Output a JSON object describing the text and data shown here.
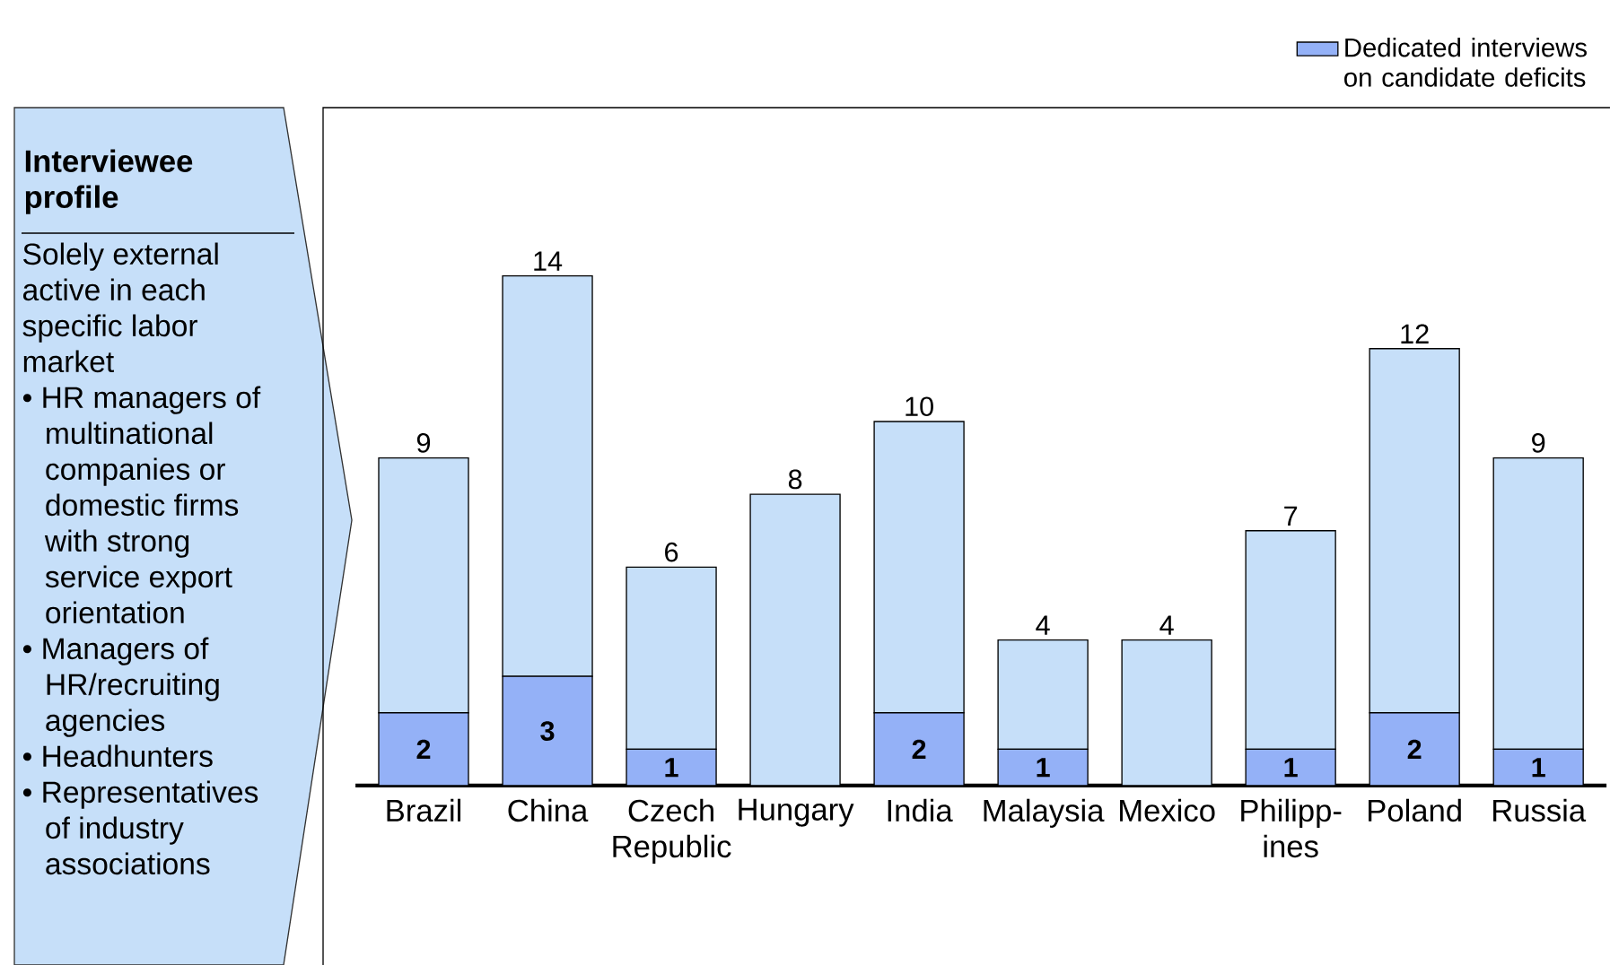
{
  "chart_data": {
    "type": "bar",
    "stacked": true,
    "legend": "top right",
    "categories": [
      "Brazil",
      "China",
      "Czech Republic",
      "Hungary",
      "India",
      "Malaysia",
      "Mexico",
      "Philipp-ines",
      "Poland",
      "Russia"
    ],
    "series": [
      {
        "name": "Dedicated interviews on candidate deficits",
        "color": "#94b1f7",
        "values": [
          2,
          3,
          1,
          0,
          2,
          1,
          0,
          1,
          2,
          1
        ],
        "value_labels": [
          "2",
          "3",
          "1",
          null,
          "2",
          "1",
          null,
          "1",
          "2",
          "1"
        ]
      },
      {
        "color": "#c6dff9",
        "values": [
          7,
          11,
          5,
          8,
          8,
          3,
          4,
          6,
          10,
          8
        ]
      }
    ],
    "totals": [
      "9",
      "14",
      "6",
      "8",
      "10",
      "4",
      "4",
      "7",
      "12",
      "9"
    ],
    "annotations": [
      "Interviewee profile",
      "Solely external active in each specific labor market",
      "• HR managers of multinational companies or domestic firms with strong service export orientation",
      "• Managers of HR/recruiting agencies",
      "• Headhunters",
      "• Representatives of industry associations"
    ]
  }
}
